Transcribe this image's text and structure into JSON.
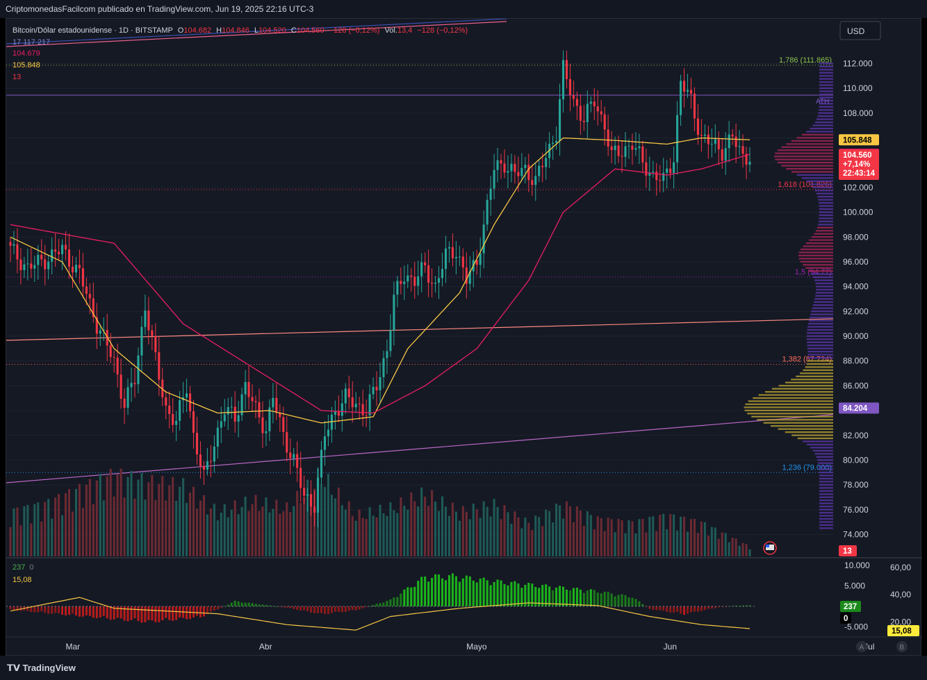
{
  "header": {
    "publish_line": "CriptomonedasFacilcom publicado en TradingView.com, Jun 19, 2025 22:16 UTC-3"
  },
  "legend": {
    "symbol": "Bitcoin/Dólar estadounidense · 1D · BITSTAMP",
    "o_label": "O",
    "o_value": "104.682",
    "h_label": "H",
    "h_value": "104.846",
    "l_label": "L",
    "l_value": "104.520",
    "c_label": "C",
    "c_value": "104.560",
    "change": "−128 (−0,12%)",
    "vol_label": "Vol.",
    "vol_value": "13,4",
    "vol_change": "−128 (−0,12%)",
    "ind_line1": "17  117  217",
    "ind_line2": "104.679",
    "ind_line3": "105.848",
    "ind_line4": "13"
  },
  "currency_button": "USD",
  "price_axis": {
    "ticks": [
      "112.000",
      "110.000",
      "108.000",
      "106.000",
      "104.000",
      "102.000",
      "100.000",
      "98.000",
      "96.000",
      "94.000",
      "92.000",
      "90.000",
      "88.000",
      "86.000",
      "84.000",
      "82.000",
      "80.000",
      "78.000",
      "76.000",
      "74.000"
    ],
    "tick_values": [
      112000,
      110000,
      108000,
      106000,
      104000,
      102000,
      100000,
      98000,
      96000,
      94000,
      92000,
      90000,
      88000,
      86000,
      84000,
      82000,
      80000,
      78000,
      76000,
      74000
    ],
    "badges": {
      "ema_slow": {
        "text": "105.848",
        "value": 105848,
        "color": "#f7c744"
      },
      "ema_fast": {
        "text": "104.679",
        "value": 104679,
        "color": "#e91e63"
      },
      "last_price": "104.560",
      "last_change": "+7,14%",
      "countdown": "22:43:14",
      "poc": {
        "text": "84.204",
        "value": 84204,
        "color": "#7e57c2"
      },
      "volume": "13"
    }
  },
  "fib_levels": [
    {
      "label": "1,786 (111.865)",
      "value": 111865,
      "color": "#8bc34a"
    },
    {
      "label": "1,618 (101.826)",
      "value": 101826,
      "color": "#f23645"
    },
    {
      "label": "1,5 (94.77)",
      "value": 94770,
      "color": "#9c27b0"
    },
    {
      "label": "1,382 (87.724)",
      "value": 87724,
      "color": "#ff6d5a"
    },
    {
      "label": "1,236 (79.000)",
      "value": 79000,
      "color": "#2196f3"
    }
  ],
  "other_labels": {
    "ath": "ATH"
  },
  "time_axis": {
    "labels": [
      "Mar",
      "Abr",
      "Mayo",
      "Jun",
      "Jul"
    ],
    "buttons": [
      "A",
      "B"
    ]
  },
  "oscillator": {
    "legend_value1": "237",
    "legend_value1_b": "0",
    "legend_value2": "15,08",
    "left_ticks": [
      "10.000",
      "5.000",
      "-5.000"
    ],
    "right_ticks": [
      "60,00",
      "40,00",
      "20,00"
    ],
    "badges": {
      "histogram": "237",
      "zero": "0",
      "line": "15,08"
    }
  },
  "footer": {
    "brand": "TradingView"
  },
  "colors": {
    "up": "#26a69a",
    "down": "#f23645",
    "ema_slow": "#f7c744",
    "ema_fast": "#e91e63",
    "bg": "#151924"
  },
  "chart_data": {
    "type": "candlestick",
    "title": "Bitcoin/Dólar estadounidense · 1D · BITSTAMP",
    "ylim": [
      72800,
      113500
    ],
    "close_path": [
      [
        0,
        97000
      ],
      [
        5,
        95500
      ],
      [
        10,
        96200
      ],
      [
        15,
        97000
      ],
      [
        20,
        95000
      ],
      [
        25,
        91000
      ],
      [
        30,
        88000
      ],
      [
        33,
        84500
      ],
      [
        36,
        86500
      ],
      [
        39,
        92500
      ],
      [
        42,
        88000
      ],
      [
        45,
        84200
      ],
      [
        48,
        83000
      ],
      [
        51,
        86000
      ],
      [
        53,
        82000
      ],
      [
        56,
        78500
      ],
      [
        59,
        81500
      ],
      [
        62,
        84000
      ],
      [
        65,
        83500
      ],
      [
        68,
        86000
      ],
      [
        71,
        84000
      ],
      [
        74,
        82500
      ],
      [
        76,
        85000
      ],
      [
        79,
        82000
      ],
      [
        82,
        80000
      ],
      [
        85,
        77000
      ],
      [
        88,
        76500
      ],
      [
        91,
        82000
      ],
      [
        94,
        84000
      ],
      [
        97,
        85000
      ],
      [
        100,
        84500
      ],
      [
        103,
        84000
      ],
      [
        106,
        86000
      ],
      [
        109,
        89000
      ],
      [
        111,
        93000
      ],
      [
        114,
        95000
      ],
      [
        117,
        94500
      ],
      [
        120,
        95500
      ],
      [
        123,
        94000
      ],
      [
        126,
        96500
      ],
      [
        129,
        97000
      ],
      [
        132,
        94500
      ],
      [
        135,
        96000
      ],
      [
        137,
        99000
      ],
      [
        140,
        103500
      ],
      [
        143,
        104000
      ],
      [
        146,
        103000
      ],
      [
        149,
        103500
      ],
      [
        152,
        102500
      ],
      [
        155,
        104500
      ],
      [
        158,
        106500
      ],
      [
        160,
        111500
      ],
      [
        163,
        109000
      ],
      [
        166,
        107500
      ],
      [
        169,
        109000
      ],
      [
        172,
        107000
      ],
      [
        174,
        104500
      ],
      [
        177,
        105000
      ],
      [
        180,
        105500
      ],
      [
        183,
        104000
      ],
      [
        186,
        103000
      ],
      [
        189,
        102500
      ],
      [
        192,
        104500
      ],
      [
        194,
        110500
      ],
      [
        197,
        109000
      ],
      [
        200,
        106000
      ],
      [
        203,
        105500
      ],
      [
        206,
        105000
      ],
      [
        209,
        106000
      ],
      [
        212,
        104500
      ],
      [
        214,
        104560
      ]
    ],
    "ema_fast": [
      [
        0,
        99000
      ],
      [
        30,
        97500
      ],
      [
        50,
        91000
      ],
      [
        70,
        87500
      ],
      [
        90,
        84000
      ],
      [
        105,
        83800
      ],
      [
        120,
        86000
      ],
      [
        135,
        89000
      ],
      [
        150,
        94500
      ],
      [
        160,
        100000
      ],
      [
        175,
        103500
      ],
      [
        190,
        103000
      ],
      [
        200,
        103500
      ],
      [
        214,
        104679
      ]
    ],
    "ema_slow": [
      [
        0,
        98000
      ],
      [
        15,
        96000
      ],
      [
        30,
        89000
      ],
      [
        45,
        85500
      ],
      [
        60,
        83800
      ],
      [
        75,
        84000
      ],
      [
        90,
        83000
      ],
      [
        105,
        83500
      ],
      [
        115,
        89000
      ],
      [
        130,
        93500
      ],
      [
        140,
        99000
      ],
      [
        150,
        103500
      ],
      [
        160,
        106000
      ],
      [
        175,
        105800
      ],
      [
        190,
        105500
      ],
      [
        200,
        106000
      ],
      [
        214,
        105848
      ]
    ],
    "volume_path": [
      [
        0,
        60
      ],
      [
        10,
        70
      ],
      [
        20,
        90
      ],
      [
        30,
        110
      ],
      [
        40,
        100
      ],
      [
        50,
        95
      ],
      [
        60,
        60
      ],
      [
        70,
        75
      ],
      [
        80,
        65
      ],
      [
        90,
        110
      ],
      [
        100,
        55
      ],
      [
        110,
        65
      ],
      [
        120,
        85
      ],
      [
        130,
        60
      ],
      [
        140,
        70
      ],
      [
        150,
        45
      ],
      [
        160,
        70
      ],
      [
        170,
        50
      ],
      [
        180,
        45
      ],
      [
        190,
        55
      ],
      [
        200,
        45
      ],
      [
        214,
        13
      ]
    ],
    "oscillator_path": [
      [
        0,
        -800
      ],
      [
        20,
        -2200
      ],
      [
        40,
        -3600
      ],
      [
        55,
        -2500
      ],
      [
        65,
        1200
      ],
      [
        80,
        -300
      ],
      [
        90,
        -1800
      ],
      [
        100,
        -900
      ],
      [
        110,
        1500
      ],
      [
        120,
        6800
      ],
      [
        128,
        7000
      ],
      [
        140,
        5800
      ],
      [
        160,
        4300
      ],
      [
        170,
        3500
      ],
      [
        180,
        2200
      ],
      [
        185,
        -600
      ],
      [
        195,
        -1800
      ],
      [
        205,
        -200
      ],
      [
        210,
        200
      ],
      [
        214,
        237
      ]
    ],
    "oscillator_line": [
      [
        0,
        28
      ],
      [
        20,
        38
      ],
      [
        30,
        30
      ],
      [
        60,
        26
      ],
      [
        80,
        18
      ],
      [
        100,
        14
      ],
      [
        110,
        24
      ],
      [
        130,
        30
      ],
      [
        150,
        34
      ],
      [
        170,
        32
      ],
      [
        185,
        24
      ],
      [
        200,
        18
      ],
      [
        214,
        15.08
      ]
    ]
  }
}
